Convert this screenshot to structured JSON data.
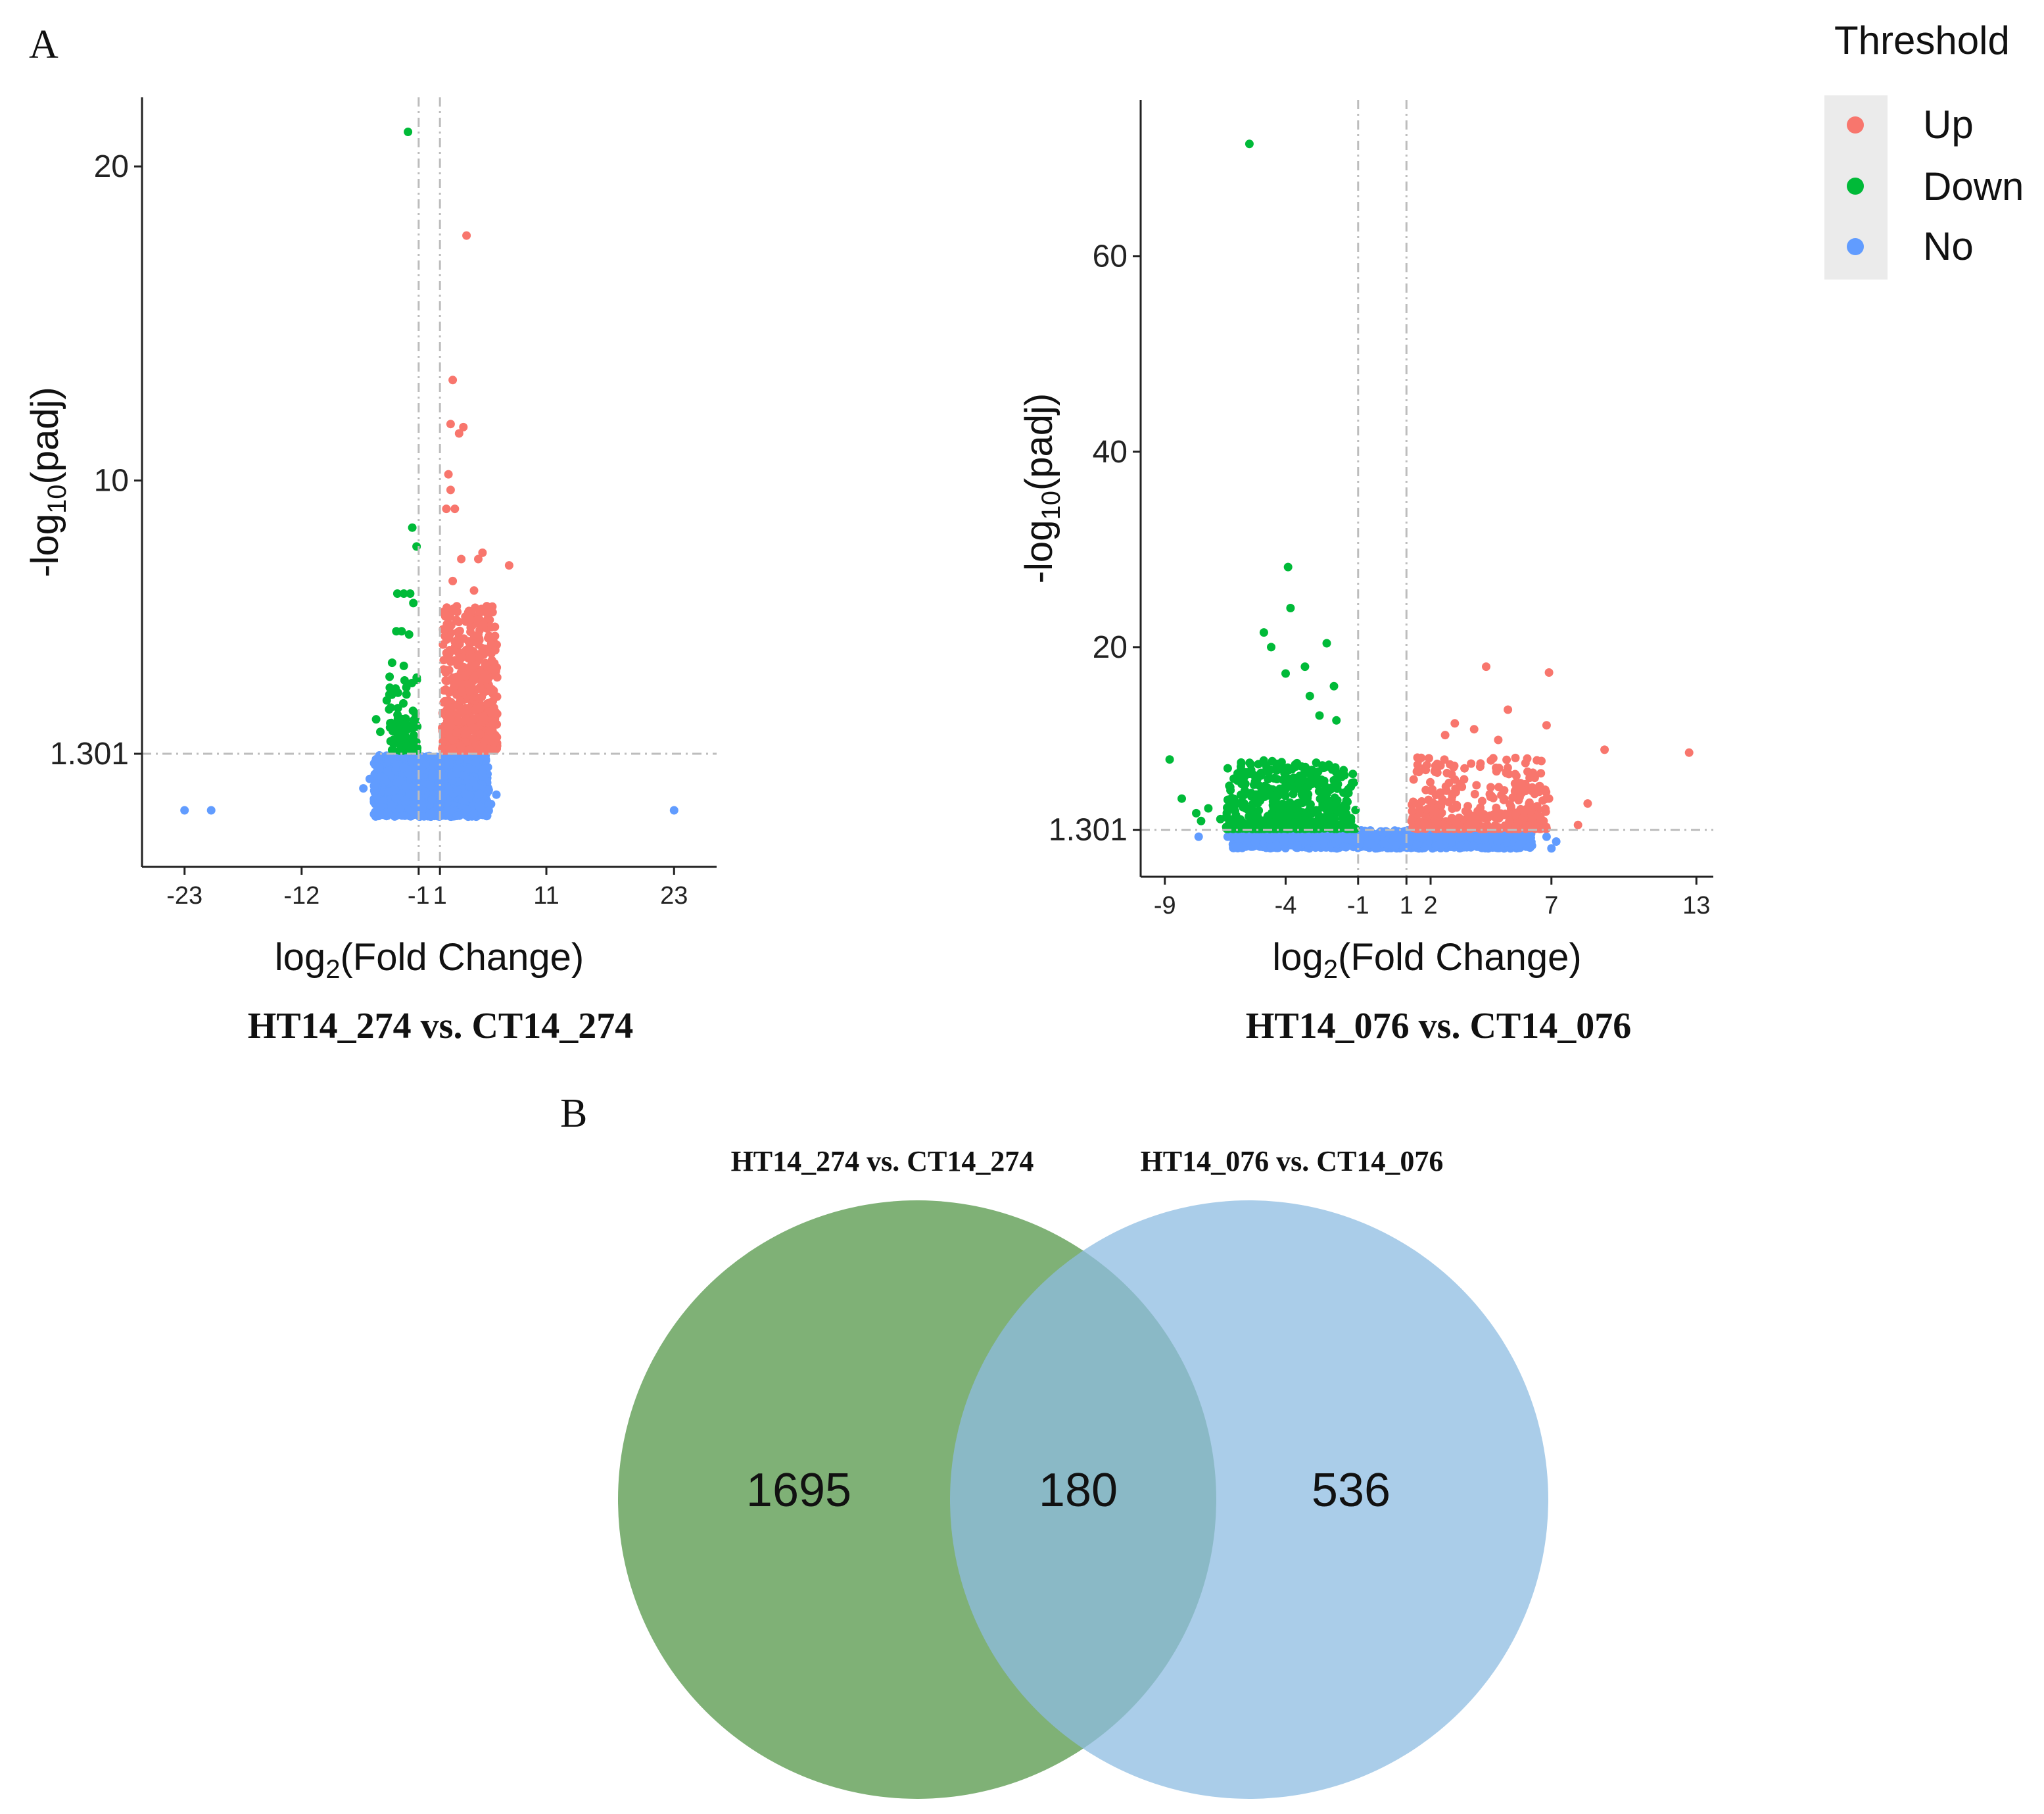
{
  "panel_labels": {
    "a": "A",
    "b": "B"
  },
  "legend": {
    "title": "Threshold",
    "items": [
      {
        "label": "Up",
        "color": "#F8766D"
      },
      {
        "label": "Down",
        "color": "#00BA38"
      },
      {
        "label": "No",
        "color": "#619CFF"
      }
    ]
  },
  "chart_data": [
    {
      "type": "scatter",
      "title": "HT14_274 vs. CT14_274",
      "xlabel_main": "log",
      "xlabel_sub": "2",
      "xlabel_rest": "(Fold Change)",
      "ylabel_pre": "-log",
      "ylabel_sub": "10",
      "ylabel_rest": "(padj)",
      "xlim": [
        -27,
        27
      ],
      "ylim": [
        -2.3,
        22.2
      ],
      "xticks": [
        -23,
        -12,
        -1,
        1,
        11,
        23
      ],
      "yticks": [
        1.301,
        10,
        20
      ],
      "ytick_labels": [
        "1.301",
        "10",
        "20"
      ],
      "vlines": [
        -1,
        1
      ],
      "hline": 1.301,
      "series": [
        {
          "name": "Up",
          "color": "#F8766D",
          "points": [
            [
              3.5,
              17.8
            ],
            [
              2.2,
              13.2
            ],
            [
              2.0,
              11.8
            ],
            [
              2.8,
              11.5
            ],
            [
              3.2,
              11.7
            ],
            [
              1.8,
              10.2
            ],
            [
              2.0,
              9.7
            ],
            [
              1.6,
              9.1
            ],
            [
              2.4,
              9.1
            ],
            [
              3.0,
              7.5
            ],
            [
              4.6,
              7.5
            ],
            [
              7.5,
              7.3
            ],
            [
              5.0,
              7.7
            ],
            [
              4.2,
              6.5
            ],
            [
              2.2,
              6.8
            ],
            [
              5.4,
              6.0
            ],
            [
              3.8,
              5.6
            ],
            [
              4.6,
              5.1
            ],
            [
              6.2,
              4.6
            ],
            [
              6.0,
              4.0
            ],
            [
              5.7,
              3.3
            ],
            [
              2.8,
              5.2
            ],
            [
              1.9,
              4.6
            ]
          ],
          "cluster": {
            "x": [
              1.2,
              6.4
            ],
            "y": [
              1.4,
              6.0
            ],
            "n": 650
          }
        },
        {
          "name": "Down",
          "color": "#00BA38",
          "points": [
            [
              -2.0,
              21.1
            ],
            [
              -1.6,
              8.5
            ],
            [
              -1.2,
              7.9
            ],
            [
              -3.0,
              6.4
            ],
            [
              -2.4,
              6.4
            ],
            [
              -1.8,
              6.4
            ],
            [
              -1.5,
              6.1
            ],
            [
              -3.1,
              5.2
            ],
            [
              -2.6,
              5.2
            ],
            [
              -1.9,
              5.1
            ],
            [
              -3.5,
              4.2
            ],
            [
              -2.4,
              4.1
            ],
            [
              -4.0,
              3.0
            ],
            [
              -5.0,
              2.4
            ],
            [
              -4.6,
              2.0
            ]
          ],
          "cluster": {
            "x": [
              -3.8,
              -1.1
            ],
            "y": [
              1.4,
              3.8
            ],
            "n": 90
          }
        },
        {
          "name": "No",
          "color": "#619CFF",
          "points": [
            [
              -23,
              -0.5
            ],
            [
              -20.5,
              -0.5
            ],
            [
              23,
              -0.5
            ],
            [
              -6.2,
              0.2
            ],
            [
              -5.6,
              0.5
            ],
            [
              5.8,
              -0.3
            ],
            [
              6.3,
              0.0
            ]
          ],
          "cluster": {
            "x": [
              -5.2,
              5.6
            ],
            "y": [
              -0.7,
              1.25
            ],
            "n": 1400
          }
        }
      ]
    },
    {
      "type": "scatter",
      "title": "HT14_076 vs. CT14_076",
      "xlabel_main": "log",
      "xlabel_sub": "2",
      "xlabel_rest": "(Fold Change)",
      "ylabel_pre": "-log",
      "ylabel_sub": "10",
      "ylabel_rest": "(padj)",
      "xlim": [
        -10,
        13.7
      ],
      "ylim": [
        -3.5,
        76
      ],
      "xticks": [
        -9,
        -4,
        -1,
        1,
        2,
        7,
        13
      ],
      "yticks": [
        1.301,
        20,
        40,
        60
      ],
      "ytick_labels": [
        "1.301",
        "20",
        "40",
        "60"
      ],
      "vlines": [
        -1,
        1
      ],
      "hline": 1.301,
      "series": [
        {
          "name": "Up",
          "color": "#F8766D",
          "points": [
            [
              12.7,
              9.2
            ],
            [
              9.2,
              9.5
            ],
            [
              8.5,
              4.0
            ],
            [
              8.1,
              1.8
            ],
            [
              6.9,
              17.4
            ],
            [
              6.8,
              12.0
            ],
            [
              5.2,
              13.6
            ],
            [
              4.3,
              18.0
            ],
            [
              3.0,
              12.2
            ],
            [
              3.8,
              11.6
            ],
            [
              4.8,
              10.5
            ],
            [
              6.0,
              8.6
            ],
            [
              2.6,
              11.0
            ],
            [
              5.5,
              7.0
            ],
            [
              6.5,
              5.2
            ],
            [
              6.9,
              4.5
            ]
          ],
          "cluster": {
            "x": [
              1.2,
              6.8
            ],
            "y": [
              1.4,
              8.8
            ],
            "n": 380
          }
        },
        {
          "name": "Down",
          "color": "#00BA38",
          "points": [
            [
              -5.5,
              71.5
            ],
            [
              -3.9,
              28.2
            ],
            [
              -3.8,
              24.0
            ],
            [
              -4.9,
              21.5
            ],
            [
              -2.3,
              20.4
            ],
            [
              -4.6,
              20.0
            ],
            [
              -3.2,
              18.0
            ],
            [
              -4.0,
              17.3
            ],
            [
              -2.0,
              16.0
            ],
            [
              -3.0,
              15.0
            ],
            [
              -8.8,
              8.5
            ],
            [
              -8.3,
              4.5
            ],
            [
              -7.2,
              3.5
            ],
            [
              -7.7,
              3.0
            ],
            [
              -6.7,
              2.4
            ],
            [
              -7.5,
              2.2
            ],
            [
              -2.6,
              13.0
            ],
            [
              -1.9,
              12.5
            ]
          ],
          "cluster": {
            "x": [
              -6.5,
              -1.1
            ],
            "y": [
              1.4,
              8.4
            ],
            "n": 520
          }
        },
        {
          "name": "No",
          "color": "#619CFF",
          "points": [
            [
              -7.6,
              0.6
            ],
            [
              -6.4,
              0.6
            ],
            [
              7.2,
              0.1
            ],
            [
              6.8,
              0.6
            ],
            [
              7.0,
              -0.6
            ]
          ],
          "cluster": {
            "x": [
              -6.2,
              6.2
            ],
            "y": [
              -0.6,
              1.25
            ],
            "n": 1400
          }
        }
      ]
    }
  ],
  "venn": {
    "left": {
      "label": "HT14_274 vs. CT14_274",
      "count": "1695",
      "color": "#5B9B50"
    },
    "right": {
      "label": "HT14_076 vs. CT14_076",
      "count": "536",
      "color": "#8EBCE2"
    },
    "overlap": {
      "count": "180"
    }
  }
}
